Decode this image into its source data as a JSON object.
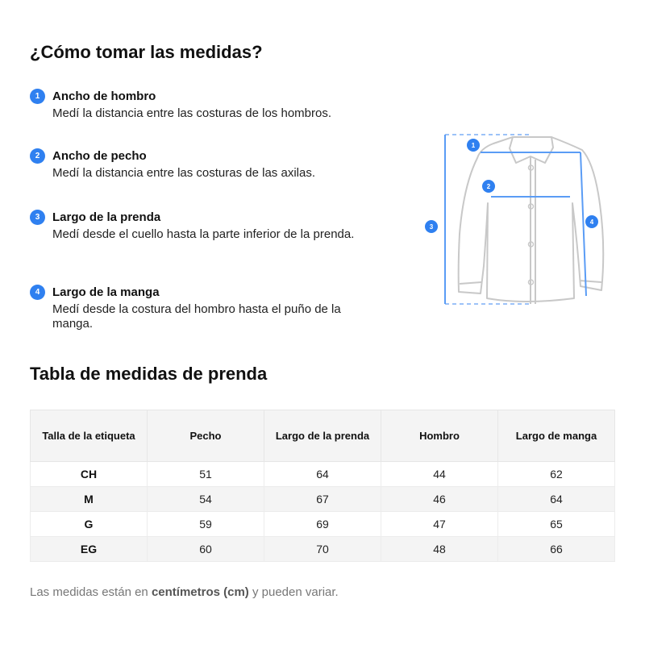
{
  "title": "¿Cómo tomar las medidas?",
  "steps": [
    {
      "n": "1",
      "title": "Ancho de hombro",
      "desc": "Medí la distancia entre las costuras de los hombros."
    },
    {
      "n": "2",
      "title": "Ancho de pecho",
      "desc": "Medí la distancia entre las costuras de las axilas."
    },
    {
      "n": "3",
      "title": "Largo de la prenda",
      "desc": "Medí desde el cuello hasta la parte inferior de la prenda."
    },
    {
      "n": "4",
      "title": "Largo de la manga",
      "desc": "Medí desde la costura del hombro hasta el puño de la manga."
    }
  ],
  "accent": "#2f80f0",
  "table_title": "Tabla de medidas de prenda",
  "table": {
    "headers": [
      "Talla de la etiqueta",
      "Pecho",
      "Largo de la prenda",
      "Hombro",
      "Largo de manga"
    ],
    "rows": [
      [
        "CH",
        "51",
        "64",
        "44",
        "62"
      ],
      [
        "M",
        "54",
        "67",
        "46",
        "64"
      ],
      [
        "G",
        "59",
        "69",
        "47",
        "65"
      ],
      [
        "EG",
        "60",
        "70",
        "48",
        "66"
      ]
    ]
  },
  "note": {
    "pre": "Las medidas están en ",
    "bold": "centímetros (cm)",
    "post": " y pueden variar."
  }
}
